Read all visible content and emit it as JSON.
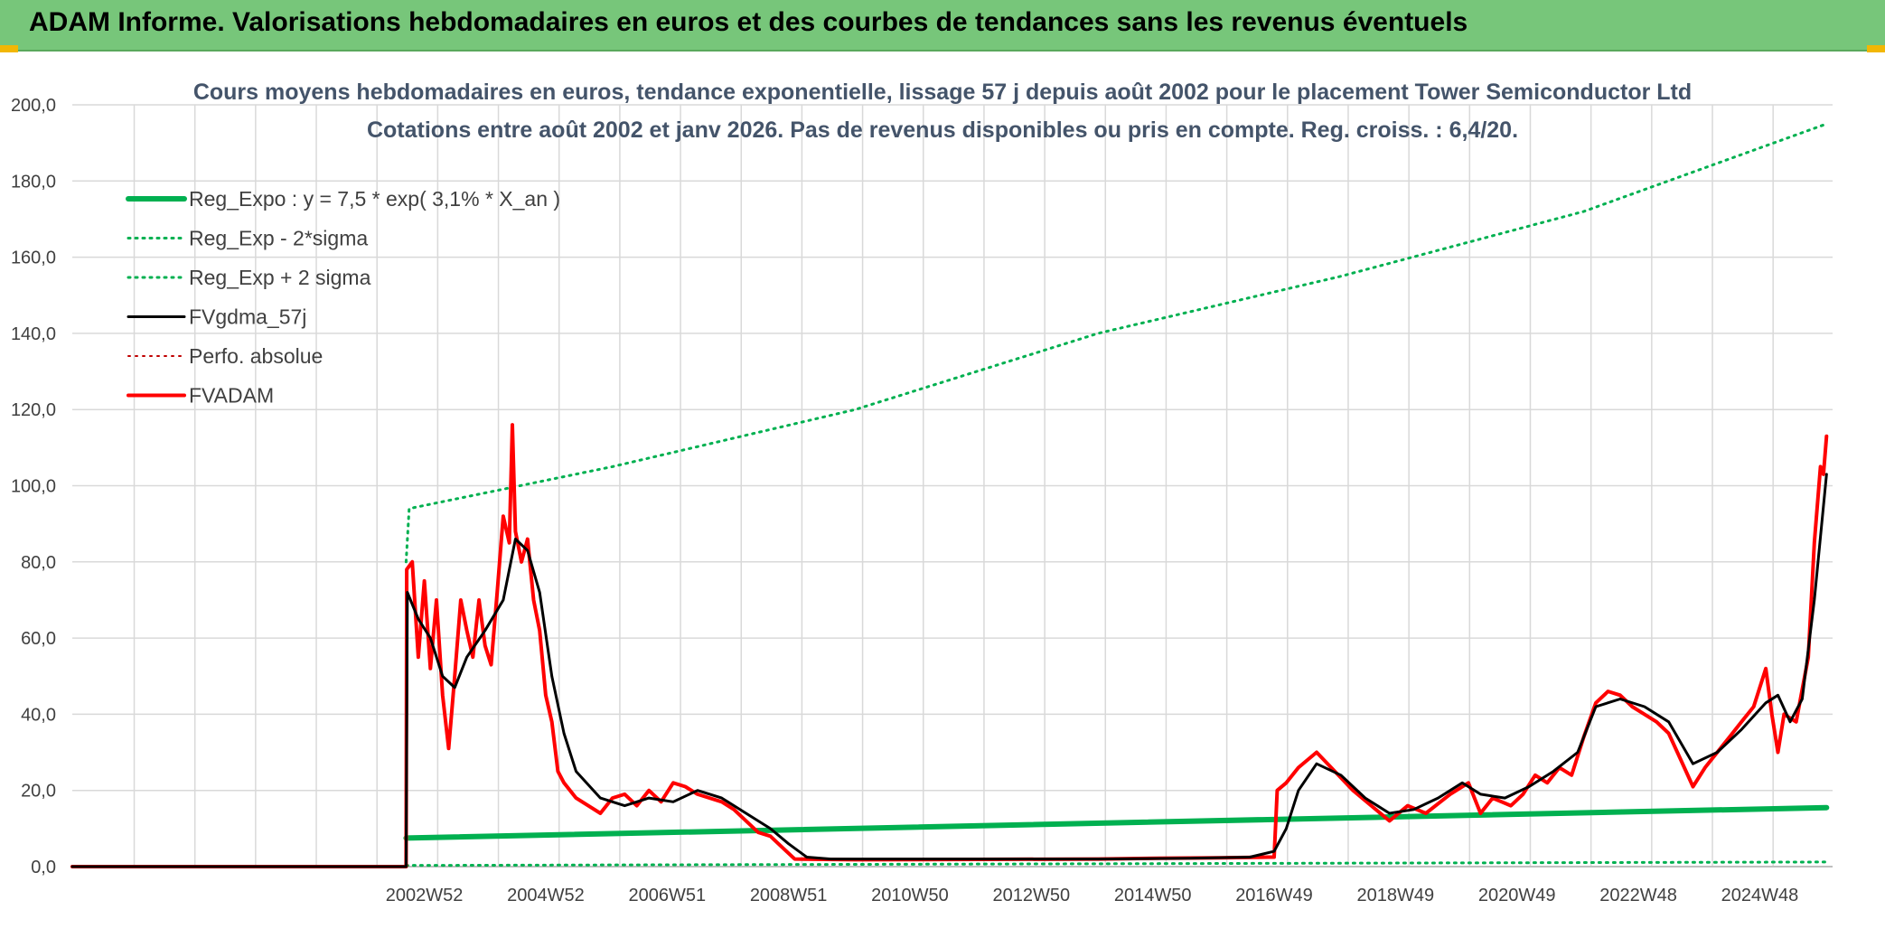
{
  "header": {
    "title": "ADAM Informe. Valorisations hebdomadaires en euros et des courbes de tendances sans les revenus éventuels",
    "color": "#77c67a"
  },
  "chart_data": {
    "type": "line",
    "title": "Cours moyens hebdomadaires en euros, tendance exponentielle, lissage 57 j depuis août 2002 pour le placement Tower Semiconductor Ltd",
    "subtitle": "Cotations entre août 2002 et janv 2026. Pas de revenus disponibles ou pris en compte. Reg. croiss. : 6,4/20.",
    "xlabel": "",
    "ylabel": "",
    "ylim": [
      0,
      200
    ],
    "yticks": [
      "0,0",
      "20,0",
      "40,0",
      "60,0",
      "80,0",
      "100,0",
      "120,0",
      "140,0",
      "160,0",
      "180,0",
      "200,0"
    ],
    "xlim": [
      1997.1,
      2026.1
    ],
    "xticks": [
      {
        "x": 2002.9,
        "label": "2002W52"
      },
      {
        "x": 2004.9,
        "label": "2004W52"
      },
      {
        "x": 2006.9,
        "label": "2006W51"
      },
      {
        "x": 2008.9,
        "label": "2008W51"
      },
      {
        "x": 2010.9,
        "label": "2010W50"
      },
      {
        "x": 2012.9,
        "label": "2012W50"
      },
      {
        "x": 2014.9,
        "label": "2014W50"
      },
      {
        "x": 2016.9,
        "label": "2016W49"
      },
      {
        "x": 2018.9,
        "label": "2018W49"
      },
      {
        "x": 2020.9,
        "label": "2020W49"
      },
      {
        "x": 2022.9,
        "label": "2022W48"
      },
      {
        "x": 2024.9,
        "label": "2024W48"
      }
    ],
    "grid": true,
    "legend_position": "top-left",
    "series": [
      {
        "name": "Reg_Expo : y = 7,5 * exp( 3,1% *  X_an )",
        "color": "#00b050",
        "style": "solid",
        "width": 6,
        "points": [
          [
            2002.6,
            7.5
          ],
          [
            2026.0,
            15.5
          ]
        ]
      },
      {
        "name": "Reg_Exp - 2*sigma",
        "color": "#00b050",
        "style": "dotted",
        "width": 3,
        "points": [
          [
            2002.6,
            0.3
          ],
          [
            2026.0,
            1.2
          ]
        ]
      },
      {
        "name": "Reg_Exp + 2 sigma",
        "color": "#00b050",
        "style": "dotted",
        "width": 3,
        "points": [
          [
            2002.6,
            80
          ],
          [
            2002.65,
            94
          ],
          [
            2006.0,
            105
          ],
          [
            2010.0,
            120
          ],
          [
            2014.0,
            140
          ],
          [
            2018.0,
            155
          ],
          [
            2022.0,
            172
          ],
          [
            2026.0,
            195
          ]
        ]
      },
      {
        "name": "FVgdma_57j",
        "color": "#000000",
        "style": "solid",
        "width": 3,
        "points": [
          [
            1997.1,
            0
          ],
          [
            2002.6,
            0
          ],
          [
            2002.62,
            72
          ],
          [
            2002.8,
            65
          ],
          [
            2003.0,
            60
          ],
          [
            2003.2,
            50
          ],
          [
            2003.4,
            47
          ],
          [
            2003.6,
            55
          ],
          [
            2003.9,
            62
          ],
          [
            2004.2,
            70
          ],
          [
            2004.4,
            86
          ],
          [
            2004.6,
            83
          ],
          [
            2004.8,
            72
          ],
          [
            2005.0,
            50
          ],
          [
            2005.2,
            35
          ],
          [
            2005.4,
            25
          ],
          [
            2005.8,
            18
          ],
          [
            2006.2,
            16
          ],
          [
            2006.6,
            18
          ],
          [
            2007.0,
            17
          ],
          [
            2007.4,
            20
          ],
          [
            2007.8,
            18
          ],
          [
            2008.2,
            14
          ],
          [
            2008.6,
            10
          ],
          [
            2008.9,
            6
          ],
          [
            2009.2,
            2.5
          ],
          [
            2009.6,
            2.0
          ],
          [
            2010.0,
            2.0
          ],
          [
            2012.0,
            2.0
          ],
          [
            2014.0,
            2.0
          ],
          [
            2015.5,
            2.2
          ],
          [
            2016.5,
            2.5
          ],
          [
            2016.9,
            4
          ],
          [
            2017.1,
            10
          ],
          [
            2017.3,
            20
          ],
          [
            2017.6,
            27
          ],
          [
            2018.0,
            24
          ],
          [
            2018.4,
            18
          ],
          [
            2018.8,
            14
          ],
          [
            2019.2,
            15
          ],
          [
            2019.6,
            18
          ],
          [
            2020.0,
            22
          ],
          [
            2020.3,
            19
          ],
          [
            2020.7,
            18
          ],
          [
            2021.1,
            21
          ],
          [
            2021.5,
            25
          ],
          [
            2021.9,
            30
          ],
          [
            2022.2,
            42
          ],
          [
            2022.6,
            44
          ],
          [
            2023.0,
            42
          ],
          [
            2023.4,
            38
          ],
          [
            2023.8,
            27
          ],
          [
            2024.2,
            30
          ],
          [
            2024.6,
            36
          ],
          [
            2025.0,
            43
          ],
          [
            2025.2,
            45
          ],
          [
            2025.4,
            38
          ],
          [
            2025.6,
            44
          ],
          [
            2025.8,
            70
          ],
          [
            2026.0,
            103
          ]
        ]
      },
      {
        "name": "Perfo. absolue",
        "color": "#c00000",
        "style": "dotted",
        "width": 2,
        "points": []
      },
      {
        "name": "FVADAM",
        "color": "#ff0000",
        "style": "solid",
        "width": 4,
        "points": [
          [
            1997.1,
            0
          ],
          [
            2002.6,
            0
          ],
          [
            2002.61,
            78
          ],
          [
            2002.7,
            80
          ],
          [
            2002.8,
            55
          ],
          [
            2002.9,
            75
          ],
          [
            2003.0,
            52
          ],
          [
            2003.1,
            70
          ],
          [
            2003.2,
            45
          ],
          [
            2003.3,
            31
          ],
          [
            2003.4,
            50
          ],
          [
            2003.5,
            70
          ],
          [
            2003.6,
            62
          ],
          [
            2003.7,
            55
          ],
          [
            2003.8,
            70
          ],
          [
            2003.9,
            58
          ],
          [
            2004.0,
            53
          ],
          [
            2004.1,
            72
          ],
          [
            2004.2,
            92
          ],
          [
            2004.3,
            85
          ],
          [
            2004.35,
            116
          ],
          [
            2004.4,
            88
          ],
          [
            2004.5,
            80
          ],
          [
            2004.6,
            86
          ],
          [
            2004.7,
            70
          ],
          [
            2004.8,
            62
          ],
          [
            2004.9,
            45
          ],
          [
            2005.0,
            38
          ],
          [
            2005.1,
            25
          ],
          [
            2005.2,
            22
          ],
          [
            2005.4,
            18
          ],
          [
            2005.6,
            16
          ],
          [
            2005.8,
            14
          ],
          [
            2006.0,
            18
          ],
          [
            2006.2,
            19
          ],
          [
            2006.4,
            16
          ],
          [
            2006.6,
            20
          ],
          [
            2006.8,
            17
          ],
          [
            2007.0,
            22
          ],
          [
            2007.2,
            21
          ],
          [
            2007.4,
            19
          ],
          [
            2007.6,
            18
          ],
          [
            2007.8,
            17
          ],
          [
            2008.0,
            15
          ],
          [
            2008.2,
            12
          ],
          [
            2008.4,
            9
          ],
          [
            2008.6,
            8
          ],
          [
            2008.8,
            5
          ],
          [
            2009.0,
            2.0
          ],
          [
            2010.0,
            1.8
          ],
          [
            2012.0,
            1.9
          ],
          [
            2014.0,
            2.0
          ],
          [
            2015.0,
            2.2
          ],
          [
            2016.0,
            2.3
          ],
          [
            2016.8,
            2.5
          ],
          [
            2016.9,
            2.5
          ],
          [
            2016.95,
            20
          ],
          [
            2017.1,
            22
          ],
          [
            2017.3,
            26
          ],
          [
            2017.6,
            30
          ],
          [
            2017.9,
            25
          ],
          [
            2018.2,
            20
          ],
          [
            2018.5,
            16
          ],
          [
            2018.8,
            12
          ],
          [
            2019.1,
            16
          ],
          [
            2019.4,
            14
          ],
          [
            2019.8,
            19
          ],
          [
            2020.1,
            22
          ],
          [
            2020.3,
            14
          ],
          [
            2020.5,
            18
          ],
          [
            2020.8,
            16
          ],
          [
            2021.0,
            19
          ],
          [
            2021.2,
            24
          ],
          [
            2021.4,
            22
          ],
          [
            2021.6,
            26
          ],
          [
            2021.8,
            24
          ],
          [
            2022.0,
            34
          ],
          [
            2022.2,
            43
          ],
          [
            2022.4,
            46
          ],
          [
            2022.6,
            45
          ],
          [
            2022.8,
            42
          ],
          [
            2023.0,
            40
          ],
          [
            2023.2,
            38
          ],
          [
            2023.4,
            35
          ],
          [
            2023.6,
            28
          ],
          [
            2023.8,
            21
          ],
          [
            2024.0,
            26
          ],
          [
            2024.2,
            30
          ],
          [
            2024.4,
            34
          ],
          [
            2024.6,
            38
          ],
          [
            2024.8,
            42
          ],
          [
            2025.0,
            52
          ],
          [
            2025.1,
            40
          ],
          [
            2025.2,
            30
          ],
          [
            2025.3,
            40
          ],
          [
            2025.5,
            38
          ],
          [
            2025.7,
            55
          ],
          [
            2025.8,
            85
          ],
          [
            2025.9,
            105
          ],
          [
            2025.95,
            103
          ],
          [
            2026.0,
            113
          ]
        ]
      }
    ]
  }
}
